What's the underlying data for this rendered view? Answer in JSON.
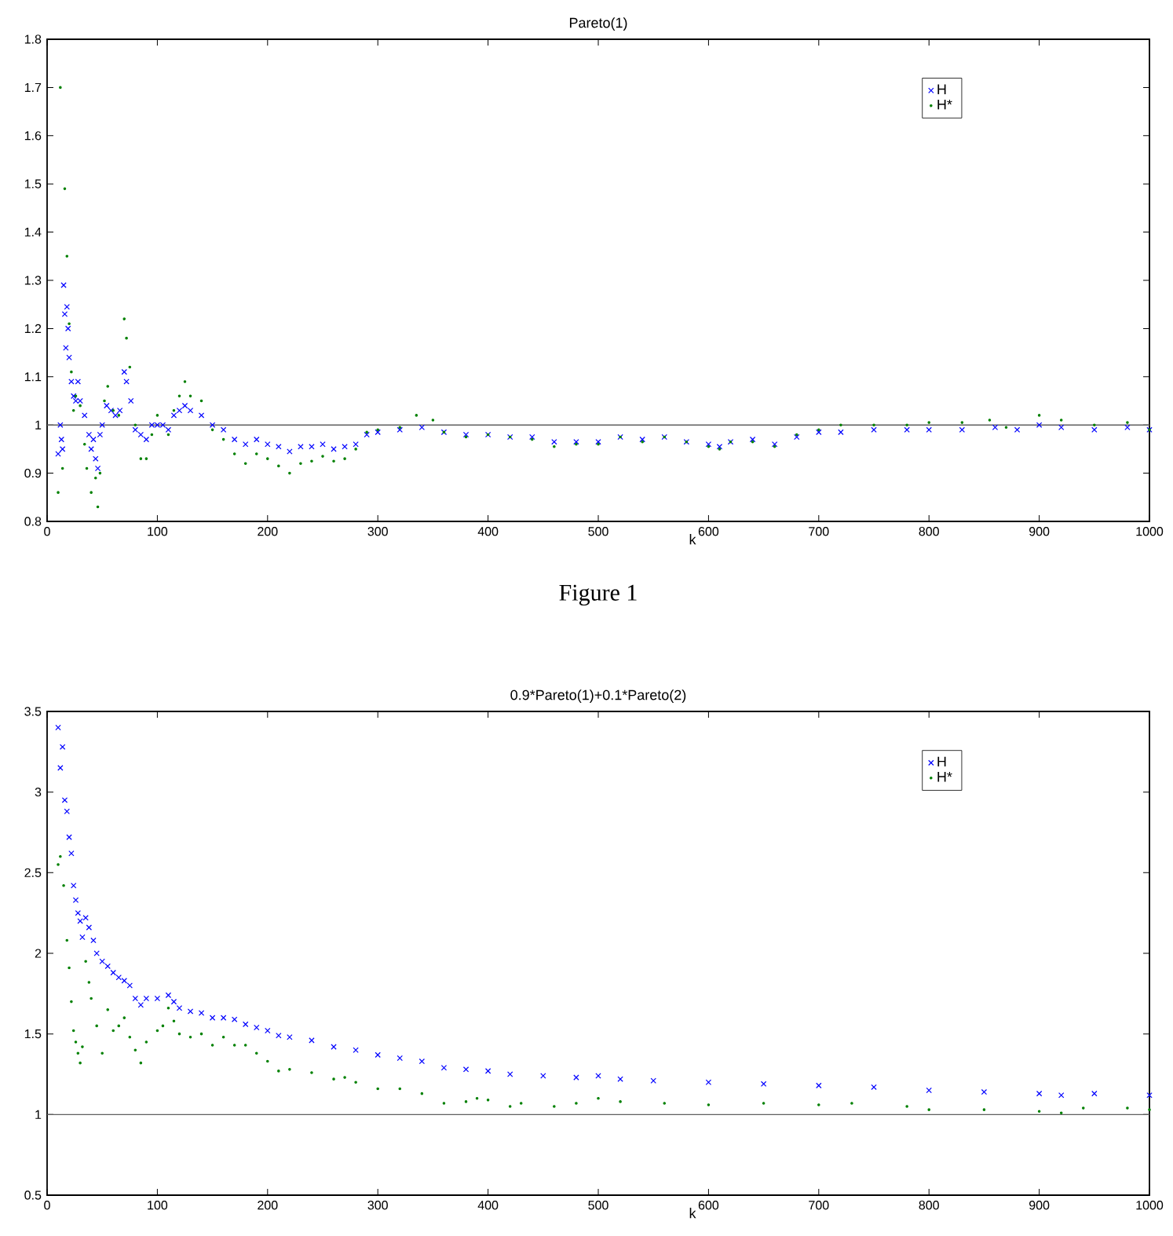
{
  "chart_data": [
    {
      "type": "scatter",
      "title": "Pareto(1)",
      "xlabel": "k",
      "xlim": [
        0,
        1000
      ],
      "ylim": [
        0.8,
        1.8
      ],
      "xticks": [
        0,
        100,
        200,
        300,
        400,
        500,
        600,
        700,
        800,
        900,
        1000
      ],
      "yticks": [
        0.8,
        0.9,
        1,
        1.1,
        1.2,
        1.3,
        1.4,
        1.5,
        1.6,
        1.7,
        1.8
      ],
      "legend": "top right",
      "annotations": [
        "Figure 1"
      ],
      "ref_lines": [
        {
          "axis": "y",
          "value": 1
        }
      ],
      "series": [
        {
          "name": "H",
          "color": "#0000ff",
          "marker": "cross",
          "x": [
            10,
            12,
            13,
            14,
            15,
            16,
            17,
            18,
            19,
            20,
            22,
            24,
            26,
            28,
            30,
            34,
            38,
            40,
            42,
            44,
            46,
            48,
            50,
            54,
            58,
            62,
            66,
            70,
            72,
            76,
            80,
            85,
            90,
            95,
            100,
            105,
            110,
            115,
            120,
            125,
            130,
            140,
            150,
            160,
            170,
            180,
            190,
            200,
            210,
            220,
            230,
            240,
            250,
            260,
            270,
            280,
            290,
            300,
            320,
            340,
            360,
            380,
            400,
            420,
            440,
            460,
            480,
            500,
            520,
            540,
            560,
            580,
            600,
            610,
            620,
            640,
            660,
            680,
            700,
            720,
            750,
            780,
            800,
            830,
            860,
            880,
            900,
            920,
            950,
            980,
            1000
          ],
          "values": [
            0.94,
            1.0,
            0.97,
            0.95,
            1.29,
            1.23,
            1.16,
            1.245,
            1.2,
            1.14,
            1.09,
            1.06,
            1.05,
            1.09,
            1.05,
            1.02,
            0.98,
            0.95,
            0.97,
            0.93,
            0.91,
            0.98,
            1.0,
            1.04,
            1.03,
            1.02,
            1.03,
            1.11,
            1.09,
            1.05,
            0.99,
            0.98,
            0.97,
            1.0,
            1.0,
            1.0,
            0.99,
            1.02,
            1.03,
            1.04,
            1.03,
            1.02,
            1.0,
            0.99,
            0.97,
            0.96,
            0.97,
            0.96,
            0.955,
            0.945,
            0.955,
            0.955,
            0.96,
            0.95,
            0.955,
            0.96,
            0.98,
            0.985,
            0.99,
            0.995,
            0.985,
            0.98,
            0.98,
            0.975,
            0.975,
            0.965,
            0.965,
            0.965,
            0.975,
            0.97,
            0.975,
            0.965,
            0.96,
            0.955,
            0.965,
            0.97,
            0.96,
            0.975,
            0.985,
            0.985,
            0.99,
            0.99,
            0.99,
            0.99,
            0.995,
            0.99,
            1.0,
            0.995,
            0.99,
            0.995,
            0.99
          ]
        },
        {
          "name": "H*",
          "color": "#008000",
          "marker": "circle",
          "x": [
            10,
            12,
            14,
            16,
            18,
            20,
            22,
            24,
            26,
            30,
            34,
            36,
            40,
            44,
            46,
            48,
            52,
            55,
            60,
            65,
            70,
            72,
            75,
            80,
            85,
            90,
            95,
            100,
            110,
            115,
            120,
            125,
            130,
            140,
            150,
            160,
            170,
            180,
            190,
            200,
            210,
            220,
            230,
            240,
            250,
            260,
            270,
            280,
            290,
            300,
            320,
            335,
            350,
            360,
            380,
            400,
            420,
            440,
            460,
            480,
            500,
            520,
            540,
            560,
            580,
            600,
            610,
            620,
            640,
            660,
            680,
            700,
            720,
            750,
            780,
            800,
            830,
            855,
            870,
            900,
            920,
            950,
            980,
            1000
          ],
          "values": [
            0.86,
            1.7,
            0.91,
            1.49,
            1.35,
            1.21,
            1.11,
            1.03,
            1.06,
            1.04,
            0.96,
            0.91,
            0.86,
            0.89,
            0.83,
            0.9,
            1.05,
            1.08,
            1.03,
            1.02,
            1.22,
            1.18,
            1.12,
            1.0,
            0.93,
            0.93,
            0.98,
            1.02,
            0.98,
            1.03,
            1.06,
            1.09,
            1.06,
            1.05,
            0.99,
            0.97,
            0.94,
            0.92,
            0.94,
            0.93,
            0.915,
            0.9,
            0.92,
            0.925,
            0.935,
            0.925,
            0.93,
            0.95,
            0.985,
            0.99,
            0.995,
            1.02,
            1.01,
            0.985,
            0.975,
            0.98,
            0.975,
            0.97,
            0.955,
            0.96,
            0.96,
            0.975,
            0.965,
            0.975,
            0.965,
            0.955,
            0.95,
            0.965,
            0.965,
            0.955,
            0.98,
            0.99,
            1.0,
            1.0,
            1.0,
            1.005,
            1.005,
            1.01,
            0.995,
            1.02,
            1.01,
            1.0,
            1.005,
            0.99
          ]
        }
      ]
    },
    {
      "type": "scatter",
      "title": "0.9*Pareto(1)+0.1*Pareto(2)",
      "xlabel": "k",
      "xlim": [
        0,
        1000
      ],
      "ylim": [
        0.5,
        3.5
      ],
      "xticks": [
        0,
        100,
        200,
        300,
        400,
        500,
        600,
        700,
        800,
        900,
        1000
      ],
      "yticks": [
        0.5,
        1,
        1.5,
        2,
        2.5,
        3,
        3.5
      ],
      "legend": "top right",
      "ref_lines": [
        {
          "axis": "y",
          "value": 1
        }
      ],
      "series": [
        {
          "name": "H",
          "color": "#0000ff",
          "marker": "cross",
          "x": [
            10,
            12,
            14,
            16,
            18,
            20,
            22,
            24,
            26,
            28,
            30,
            32,
            35,
            38,
            42,
            45,
            50,
            55,
            60,
            65,
            70,
            75,
            80,
            85,
            90,
            100,
            110,
            115,
            120,
            130,
            140,
            150,
            160,
            170,
            180,
            190,
            200,
            210,
            220,
            240,
            260,
            280,
            300,
            320,
            340,
            360,
            380,
            400,
            420,
            450,
            480,
            500,
            520,
            550,
            600,
            650,
            700,
            750,
            800,
            850,
            900,
            920,
            950,
            1000
          ],
          "values": [
            3.4,
            3.15,
            3.28,
            2.95,
            2.88,
            2.72,
            2.62,
            2.42,
            2.33,
            2.25,
            2.2,
            2.1,
            2.22,
            2.16,
            2.08,
            2.0,
            1.95,
            1.92,
            1.88,
            1.85,
            1.83,
            1.8,
            1.72,
            1.68,
            1.72,
            1.72,
            1.74,
            1.7,
            1.66,
            1.64,
            1.63,
            1.6,
            1.6,
            1.59,
            1.56,
            1.54,
            1.52,
            1.49,
            1.48,
            1.46,
            1.42,
            1.4,
            1.37,
            1.35,
            1.33,
            1.29,
            1.28,
            1.27,
            1.25,
            1.24,
            1.23,
            1.24,
            1.22,
            1.21,
            1.2,
            1.19,
            1.18,
            1.17,
            1.15,
            1.14,
            1.13,
            1.12,
            1.13,
            1.12
          ]
        },
        {
          "name": "H*",
          "color": "#008000",
          "marker": "circle",
          "x": [
            10,
            12,
            15,
            18,
            20,
            22,
            24,
            26,
            28,
            30,
            32,
            35,
            38,
            40,
            45,
            50,
            55,
            60,
            65,
            70,
            75,
            80,
            85,
            90,
            100,
            105,
            110,
            115,
            120,
            130,
            140,
            150,
            160,
            170,
            180,
            190,
            200,
            210,
            220,
            240,
            260,
            270,
            280,
            300,
            320,
            340,
            360,
            380,
            390,
            400,
            420,
            430,
            460,
            480,
            500,
            520,
            560,
            600,
            650,
            700,
            730,
            780,
            800,
            850,
            900,
            920,
            940,
            980,
            1000
          ],
          "values": [
            2.55,
            2.6,
            2.42,
            2.08,
            1.91,
            1.7,
            1.52,
            1.45,
            1.38,
            1.32,
            1.42,
            1.95,
            1.82,
            1.72,
            1.55,
            1.38,
            1.65,
            1.52,
            1.55,
            1.6,
            1.48,
            1.4,
            1.32,
            1.45,
            1.52,
            1.55,
            1.66,
            1.58,
            1.5,
            1.48,
            1.5,
            1.43,
            1.48,
            1.43,
            1.43,
            1.38,
            1.33,
            1.27,
            1.28,
            1.26,
            1.22,
            1.23,
            1.2,
            1.16,
            1.16,
            1.13,
            1.07,
            1.08,
            1.1,
            1.09,
            1.05,
            1.07,
            1.05,
            1.07,
            1.1,
            1.08,
            1.07,
            1.06,
            1.07,
            1.06,
            1.07,
            1.05,
            1.03,
            1.03,
            1.02,
            1.01,
            1.04,
            1.04,
            1.03
          ]
        }
      ]
    }
  ]
}
